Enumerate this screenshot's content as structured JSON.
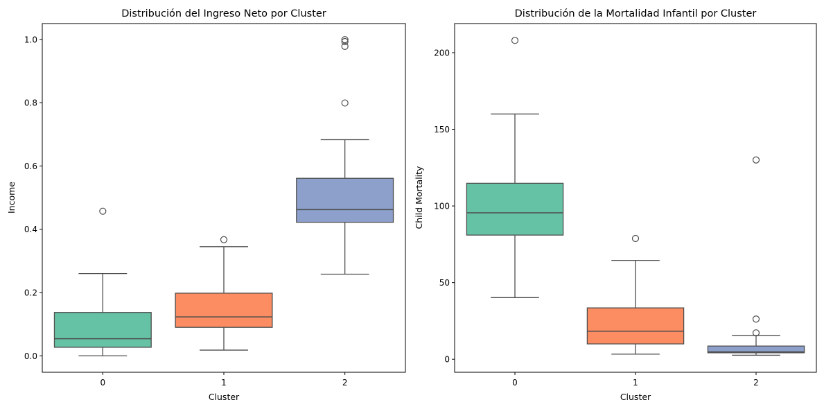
{
  "chart_data": [
    {
      "type": "box",
      "title": "Distribución del Ingreso Neto por Cluster",
      "xlabel": "Cluster",
      "ylabel": "Income",
      "categories": [
        "0",
        "1",
        "2"
      ],
      "ylim": [
        -0.052,
        1.05
      ],
      "yticks": [
        0.0,
        0.2,
        0.4,
        0.6,
        0.8,
        1.0
      ],
      "ytick_labels": [
        "0.0",
        "0.2",
        "0.4",
        "0.6",
        "0.8",
        "1.0"
      ],
      "grid": false,
      "boxes": [
        {
          "cluster": "0",
          "color": "#66c2a5",
          "whisker_low": 0.0,
          "q1": 0.027,
          "median": 0.054,
          "q3": 0.137,
          "whisker_high": 0.26,
          "outliers": [
            0.457
          ]
        },
        {
          "cluster": "1",
          "color": "#fc8d62",
          "whisker_low": 0.018,
          "q1": 0.09,
          "median": 0.123,
          "q3": 0.198,
          "whisker_high": 0.345,
          "outliers": [
            0.367
          ]
        },
        {
          "cluster": "2",
          "color": "#8da0cb",
          "whisker_low": 0.258,
          "q1": 0.422,
          "median": 0.462,
          "q3": 0.561,
          "whisker_high": 0.683,
          "outliers": [
            0.799,
            0.978,
            0.993,
            0.999
          ]
        }
      ]
    },
    {
      "type": "box",
      "title": "Distribución de la Mortalidad Infantil por Cluster",
      "xlabel": "Cluster",
      "ylabel": "Child Mortality",
      "categories": [
        "0",
        "1",
        "2"
      ],
      "ylim": [
        -8.5,
        219
      ],
      "yticks": [
        0,
        50,
        100,
        150,
        200
      ],
      "ytick_labels": [
        "0",
        "50",
        "100",
        "150",
        "200"
      ],
      "grid": false,
      "boxes": [
        {
          "cluster": "0",
          "color": "#66c2a5",
          "whisker_low": 40.2,
          "q1": 81.0,
          "median": 95.5,
          "q3": 114.8,
          "whisker_high": 160.0,
          "outliers": [
            208.0
          ]
        },
        {
          "cluster": "1",
          "color": "#fc8d62",
          "whisker_low": 3.3,
          "q1": 10.0,
          "median": 18.3,
          "q3": 33.5,
          "whisker_high": 64.5,
          "outliers": [
            78.8
          ]
        },
        {
          "cluster": "2",
          "color": "#8da0cb",
          "whisker_low": 2.6,
          "q1": 4.2,
          "median": 4.8,
          "q3": 8.6,
          "whisker_high": 15.5,
          "outliers": [
            17.2,
            26.2,
            130.0
          ]
        }
      ]
    }
  ]
}
